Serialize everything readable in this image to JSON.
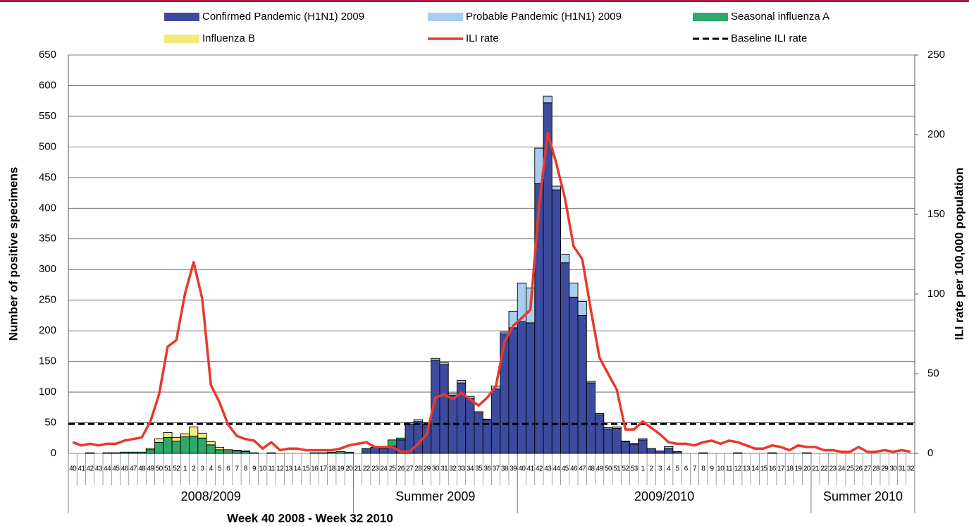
{
  "chart_data": {
    "type": "bar",
    "stacked": true,
    "x_title": "Week 40 2008 - Week 32 2010",
    "y_title": "Number of positive specimens",
    "y2_title": "ILI rate per 100,000 population",
    "categories": [
      "40",
      "41",
      "42",
      "43",
      "44",
      "45",
      "46",
      "47",
      "48",
      "49",
      "50",
      "51",
      "52",
      "1",
      "2",
      "3",
      "4",
      "5",
      "6",
      "7",
      "8",
      "9",
      "10",
      "11",
      "12",
      "13",
      "14",
      "15",
      "16",
      "17",
      "18",
      "19",
      "20",
      "21",
      "22",
      "23",
      "24",
      "25",
      "26",
      "27",
      "28",
      "29",
      "30",
      "31",
      "32",
      "33",
      "34",
      "35",
      "36",
      "37",
      "38",
      "39",
      "40",
      "41",
      "42",
      "43",
      "44",
      "45",
      "46",
      "47",
      "48",
      "49",
      "50",
      "51",
      "52",
      "53",
      "1",
      "2",
      "3",
      "4",
      "5",
      "6",
      "7",
      "8",
      "9",
      "10",
      "11",
      "12",
      "13",
      "14",
      "15",
      "16",
      "17",
      "18",
      "19",
      "20",
      "21",
      "22",
      "23",
      "24",
      "25",
      "26",
      "27",
      "28",
      "29",
      "30",
      "31",
      "32"
    ],
    "x_groups": [
      {
        "label": "2008/2009",
        "count": 33
      },
      {
        "label": "Summer 2009",
        "count": 19
      },
      {
        "label": "2009/2010",
        "count": 34
      },
      {
        "label": "Summer 2010",
        "count": 12
      }
    ],
    "ylim": [
      0,
      650
    ],
    "yticks": [
      0,
      50,
      100,
      150,
      200,
      250,
      300,
      350,
      400,
      450,
      500,
      550,
      600,
      650
    ],
    "y2lim": [
      0,
      250
    ],
    "y2ticks": [
      0,
      50,
      100,
      150,
      200,
      250
    ],
    "grid": true,
    "series": [
      {
        "name": "Confirmed Pandemic (H1N1) 2009",
        "color": "#3d4b9e",
        "values": [
          0,
          0,
          0,
          0,
          0,
          0,
          0,
          0,
          0,
          0,
          0,
          0,
          0,
          0,
          0,
          0,
          0,
          0,
          0,
          0,
          0,
          0,
          0,
          0,
          0,
          0,
          0,
          0,
          0,
          0,
          0,
          0,
          0,
          0,
          8,
          10,
          8,
          12,
          22,
          48,
          52,
          48,
          152,
          145,
          95,
          115,
          90,
          66,
          55,
          105,
          195,
          205,
          215,
          213,
          440,
          572,
          430,
          311,
          255,
          225,
          115,
          63,
          40,
          41,
          19,
          15,
          22,
          8,
          4,
          8,
          3,
          0,
          0,
          1,
          0,
          0,
          0,
          1,
          0,
          0,
          0,
          1,
          0,
          0,
          0,
          1,
          0,
          0,
          0,
          0,
          0,
          0,
          0,
          0,
          0,
          0,
          0,
          0
        ]
      },
      {
        "name": "Probable Pandemic (H1N1) 2009",
        "color": "#a8cdee",
        "values": [
          0,
          0,
          0,
          0,
          0,
          0,
          0,
          0,
          0,
          0,
          0,
          0,
          0,
          0,
          0,
          0,
          0,
          0,
          0,
          0,
          0,
          0,
          0,
          0,
          0,
          0,
          0,
          0,
          0,
          0,
          0,
          0,
          0,
          0,
          0,
          0,
          0,
          0,
          0,
          2,
          3,
          2,
          3,
          3,
          3,
          4,
          3,
          2,
          1,
          5,
          3,
          27,
          63,
          57,
          58,
          11,
          6,
          14,
          23,
          23,
          3,
          2,
          2,
          2,
          1,
          1,
          2,
          0,
          0,
          3,
          0,
          0,
          0,
          0,
          0,
          0,
          0,
          0,
          0,
          0,
          0,
          0,
          0,
          0,
          0,
          0,
          0,
          0,
          0,
          0,
          0,
          0,
          0,
          0,
          0,
          0,
          0,
          0
        ]
      },
      {
        "name": "Seasonal influenza A",
        "color": "#2fa96a",
        "values": [
          0,
          0,
          1,
          0,
          1,
          1,
          2,
          2,
          2,
          6,
          18,
          26,
          20,
          27,
          28,
          25,
          14,
          6,
          4,
          4,
          3,
          1,
          0,
          1,
          0,
          0,
          0,
          0,
          1,
          1,
          2,
          3,
          2,
          0,
          0,
          0,
          0,
          10,
          3,
          0,
          0,
          0,
          0,
          0,
          0,
          0,
          0,
          0,
          0,
          0,
          0,
          0,
          0,
          0,
          0,
          0,
          0,
          0,
          0,
          0,
          0,
          0,
          0,
          0,
          0,
          0,
          0,
          0,
          0,
          0,
          0,
          0,
          0,
          0,
          0,
          0,
          0,
          0,
          0,
          0,
          0,
          0,
          0,
          0,
          0,
          0,
          0,
          0,
          0,
          0,
          0,
          0,
          0,
          0,
          0,
          0,
          0,
          0
        ]
      },
      {
        "name": "Influenza B",
        "color": "#f4ea7c",
        "values": [
          0,
          0,
          0,
          0,
          0,
          0,
          0,
          0,
          0,
          2,
          6,
          8,
          6,
          5,
          15,
          8,
          5,
          4,
          2,
          1,
          1,
          0,
          0,
          0,
          0,
          0,
          0,
          0,
          0,
          0,
          0,
          0,
          0,
          0,
          0,
          0,
          0,
          0,
          0,
          0,
          0,
          0,
          0,
          0,
          0,
          0,
          0,
          0,
          0,
          0,
          0,
          0,
          0,
          0,
          0,
          0,
          0,
          0,
          0,
          0,
          0,
          0,
          0,
          0,
          0,
          0,
          0,
          0,
          0,
          0,
          0,
          0,
          0,
          0,
          0,
          0,
          0,
          0,
          0,
          0,
          0,
          0,
          0,
          0,
          0,
          0,
          0,
          0,
          0,
          0,
          0,
          0,
          0,
          0,
          0,
          0,
          0,
          0
        ]
      },
      {
        "name": "ILI rate",
        "color": "#e8392b",
        "type": "line",
        "axis": "y2",
        "values": [
          7,
          5,
          6,
          5,
          6,
          6,
          8,
          9,
          10,
          20,
          37,
          67,
          71,
          100,
          120,
          97,
          43,
          32,
          18,
          11,
          9,
          8,
          3,
          7,
          2,
          3,
          3,
          2,
          2,
          2,
          2,
          3,
          5,
          6,
          7,
          4,
          4,
          4,
          1,
          1,
          6,
          12,
          35,
          37,
          34,
          38,
          34,
          30,
          35,
          42,
          70,
          80,
          85,
          90,
          155,
          201,
          182,
          160,
          130,
          122,
          90,
          60,
          50,
          40,
          15,
          15,
          20,
          16,
          12,
          7,
          6,
          6,
          5,
          7,
          8,
          6,
          8,
          7,
          5,
          3,
          3,
          5,
          4,
          2,
          5,
          4,
          4,
          2,
          2,
          1,
          1,
          4,
          1,
          1,
          2,
          1,
          2,
          1
        ]
      }
    ],
    "baseline": {
      "name": "Baseline ILI rate",
      "color": "#000000",
      "axis": "y2",
      "value": 18.5
    }
  }
}
